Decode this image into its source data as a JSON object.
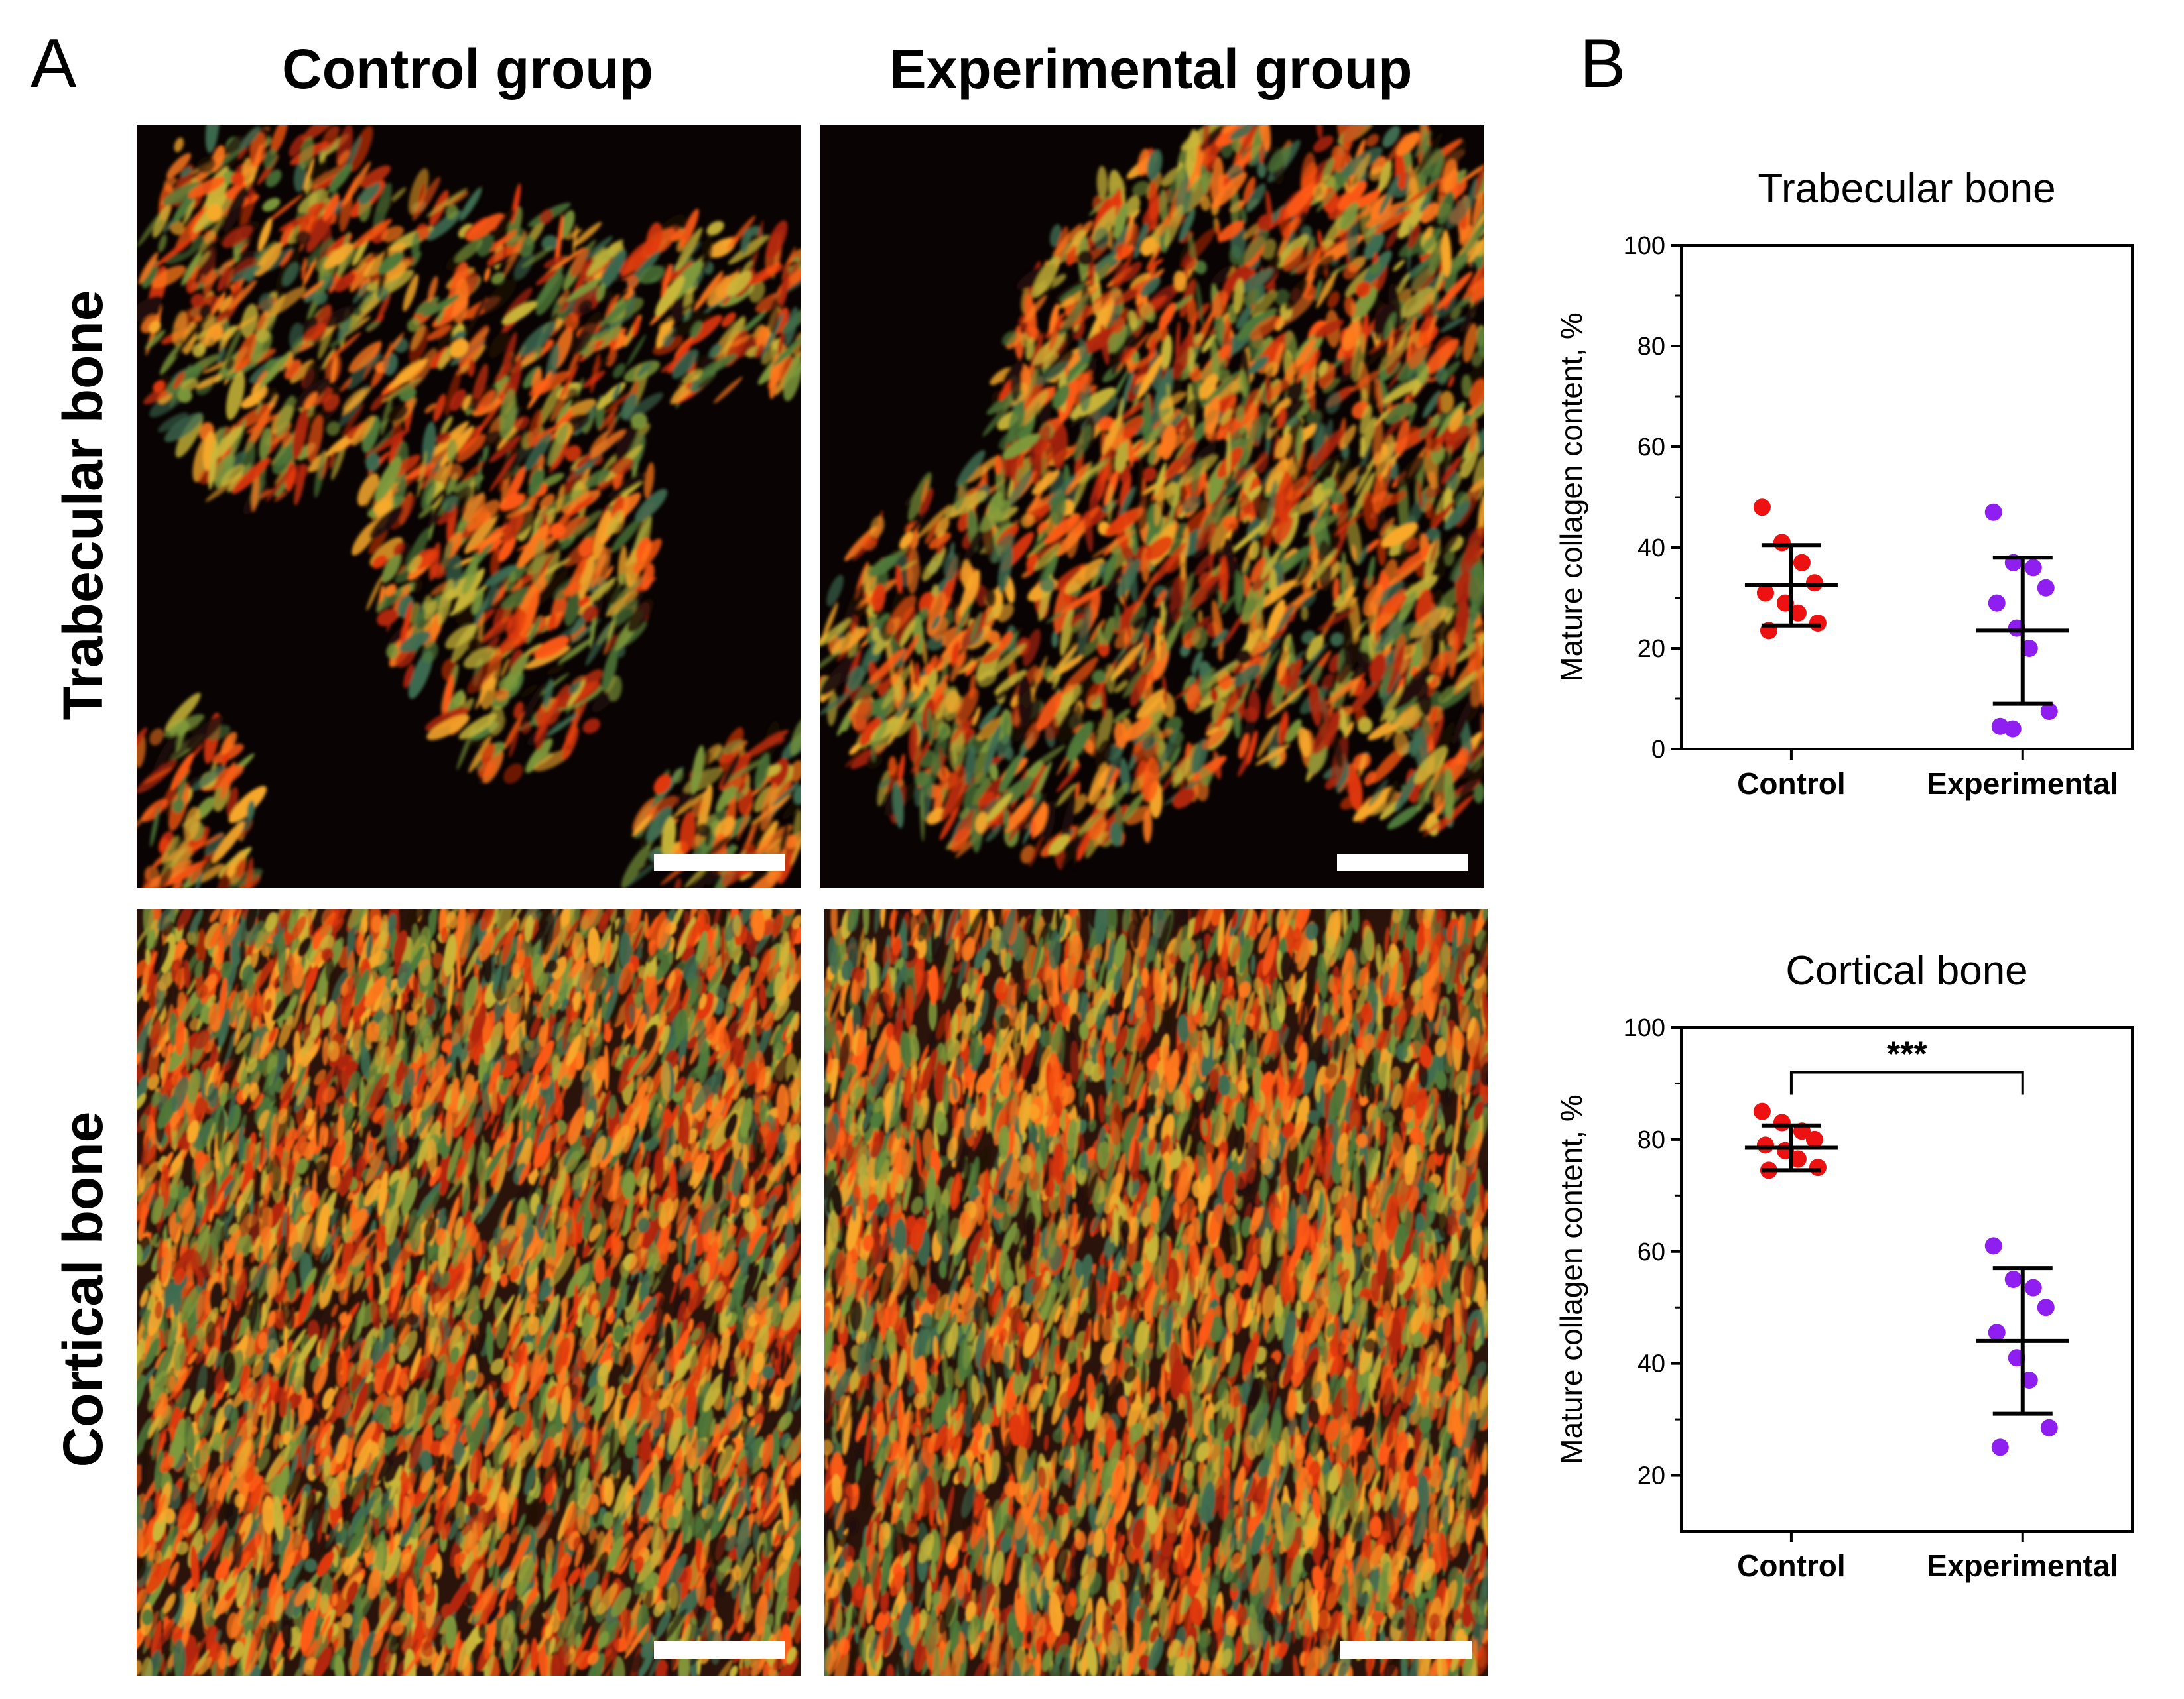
{
  "figure": {
    "panel_a_label": "A",
    "panel_b_label": "B",
    "columns": [
      "Control group",
      "Experimental group"
    ],
    "rows": [
      "Trabecular bone",
      "Cortical bone"
    ]
  },
  "micrographs": [
    {
      "group": "Control group",
      "tissue": "Trabecular bone",
      "scale_bar": true
    },
    {
      "group": "Experimental group",
      "tissue": "Trabecular bone",
      "scale_bar": true
    },
    {
      "group": "Control group",
      "tissue": "Cortical bone",
      "scale_bar": true
    },
    {
      "group": "Experimental group",
      "tissue": "Cortical bone",
      "scale_bar": true
    }
  ],
  "colors": {
    "control_points": "#ee1111",
    "experimental_points": "#8f1ff0",
    "axis": "#000000",
    "scale_bar": "#ffffff"
  },
  "chart_data": [
    {
      "type": "scatter",
      "title": "Trabecular bone",
      "ylabel": "Mature collagen content, %",
      "xlabel": "",
      "categories": [
        "Control",
        "Experimental"
      ],
      "ylim": [
        0,
        100
      ],
      "yticks": [
        0,
        20,
        40,
        60,
        80,
        100
      ],
      "grid": false,
      "series": [
        {
          "category": "Control",
          "color": "#ee1111",
          "points": [
            48,
            41,
            37,
            33,
            31,
            29,
            27,
            25,
            23.5
          ],
          "mean": 32.5,
          "err_low": 24.5,
          "err_high": 40.5
        },
        {
          "category": "Experimental",
          "color": "#8f1ff0",
          "points": [
            47,
            37,
            36,
            32,
            29,
            24,
            20,
            7.5,
            4.5,
            4
          ],
          "mean": 23.5,
          "err_low": 9,
          "err_high": 38
        }
      ],
      "annotations": []
    },
    {
      "type": "scatter",
      "title": "Cortical bone",
      "ylabel": "Mature collagen content, %",
      "xlabel": "",
      "categories": [
        "Control",
        "Experimental"
      ],
      "ylim": [
        10,
        100
      ],
      "yticks": [
        20,
        40,
        60,
        80,
        100
      ],
      "grid": false,
      "series": [
        {
          "category": "Control",
          "color": "#ee1111",
          "points": [
            85,
            83,
            81.5,
            80,
            79,
            78,
            76.5,
            75,
            74.5
          ],
          "mean": 78.5,
          "err_low": 74.5,
          "err_high": 82.5
        },
        {
          "category": "Experimental",
          "color": "#8f1ff0",
          "points": [
            61,
            55,
            53.5,
            50,
            45.5,
            41,
            37,
            28.5,
            25
          ],
          "mean": 44,
          "err_low": 31,
          "err_high": 57
        }
      ],
      "annotations": [
        {
          "type": "significance_bracket",
          "from": "Control",
          "to": "Experimental",
          "y": 92,
          "label": "***"
        }
      ]
    }
  ]
}
